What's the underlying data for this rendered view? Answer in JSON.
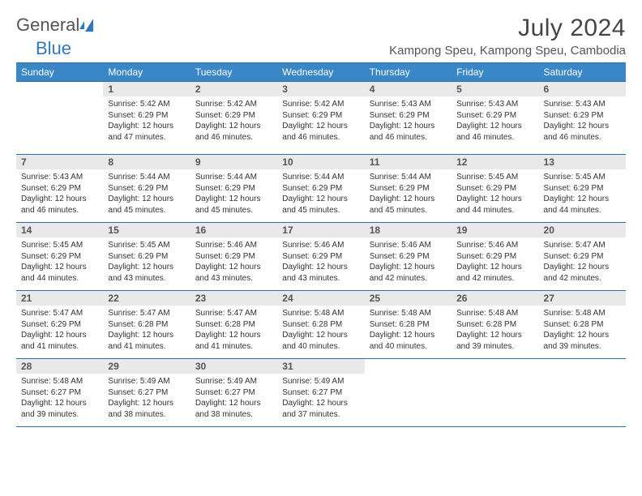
{
  "logo": {
    "text1": "General",
    "text2": "Blue"
  },
  "title": "July 2024",
  "location": "Kampong Speu, Kampong Speu, Cambodia",
  "colors": {
    "header_bg": "#3a87c8",
    "header_border": "#2d6ea6",
    "daynum_bg": "#e9e9e9",
    "text": "#333333",
    "logo_accent": "#2f79bd"
  },
  "weekday_labels": [
    "Sunday",
    "Monday",
    "Tuesday",
    "Wednesday",
    "Thursday",
    "Friday",
    "Saturday"
  ],
  "weeks": [
    [
      null,
      {
        "n": "1",
        "sr": "5:42 AM",
        "ss": "6:29 PM",
        "dl": "12 hours and 47 minutes."
      },
      {
        "n": "2",
        "sr": "5:42 AM",
        "ss": "6:29 PM",
        "dl": "12 hours and 46 minutes."
      },
      {
        "n": "3",
        "sr": "5:42 AM",
        "ss": "6:29 PM",
        "dl": "12 hours and 46 minutes."
      },
      {
        "n": "4",
        "sr": "5:43 AM",
        "ss": "6:29 PM",
        "dl": "12 hours and 46 minutes."
      },
      {
        "n": "5",
        "sr": "5:43 AM",
        "ss": "6:29 PM",
        "dl": "12 hours and 46 minutes."
      },
      {
        "n": "6",
        "sr": "5:43 AM",
        "ss": "6:29 PM",
        "dl": "12 hours and 46 minutes."
      }
    ],
    [
      {
        "n": "7",
        "sr": "5:43 AM",
        "ss": "6:29 PM",
        "dl": "12 hours and 46 minutes."
      },
      {
        "n": "8",
        "sr": "5:44 AM",
        "ss": "6:29 PM",
        "dl": "12 hours and 45 minutes."
      },
      {
        "n": "9",
        "sr": "5:44 AM",
        "ss": "6:29 PM",
        "dl": "12 hours and 45 minutes."
      },
      {
        "n": "10",
        "sr": "5:44 AM",
        "ss": "6:29 PM",
        "dl": "12 hours and 45 minutes."
      },
      {
        "n": "11",
        "sr": "5:44 AM",
        "ss": "6:29 PM",
        "dl": "12 hours and 45 minutes."
      },
      {
        "n": "12",
        "sr": "5:45 AM",
        "ss": "6:29 PM",
        "dl": "12 hours and 44 minutes."
      },
      {
        "n": "13",
        "sr": "5:45 AM",
        "ss": "6:29 PM",
        "dl": "12 hours and 44 minutes."
      }
    ],
    [
      {
        "n": "14",
        "sr": "5:45 AM",
        "ss": "6:29 PM",
        "dl": "12 hours and 44 minutes."
      },
      {
        "n": "15",
        "sr": "5:45 AM",
        "ss": "6:29 PM",
        "dl": "12 hours and 43 minutes."
      },
      {
        "n": "16",
        "sr": "5:46 AM",
        "ss": "6:29 PM",
        "dl": "12 hours and 43 minutes."
      },
      {
        "n": "17",
        "sr": "5:46 AM",
        "ss": "6:29 PM",
        "dl": "12 hours and 43 minutes."
      },
      {
        "n": "18",
        "sr": "5:46 AM",
        "ss": "6:29 PM",
        "dl": "12 hours and 42 minutes."
      },
      {
        "n": "19",
        "sr": "5:46 AM",
        "ss": "6:29 PM",
        "dl": "12 hours and 42 minutes."
      },
      {
        "n": "20",
        "sr": "5:47 AM",
        "ss": "6:29 PM",
        "dl": "12 hours and 42 minutes."
      }
    ],
    [
      {
        "n": "21",
        "sr": "5:47 AM",
        "ss": "6:29 PM",
        "dl": "12 hours and 41 minutes."
      },
      {
        "n": "22",
        "sr": "5:47 AM",
        "ss": "6:28 PM",
        "dl": "12 hours and 41 minutes."
      },
      {
        "n": "23",
        "sr": "5:47 AM",
        "ss": "6:28 PM",
        "dl": "12 hours and 41 minutes."
      },
      {
        "n": "24",
        "sr": "5:48 AM",
        "ss": "6:28 PM",
        "dl": "12 hours and 40 minutes."
      },
      {
        "n": "25",
        "sr": "5:48 AM",
        "ss": "6:28 PM",
        "dl": "12 hours and 40 minutes."
      },
      {
        "n": "26",
        "sr": "5:48 AM",
        "ss": "6:28 PM",
        "dl": "12 hours and 39 minutes."
      },
      {
        "n": "27",
        "sr": "5:48 AM",
        "ss": "6:28 PM",
        "dl": "12 hours and 39 minutes."
      }
    ],
    [
      {
        "n": "28",
        "sr": "5:48 AM",
        "ss": "6:27 PM",
        "dl": "12 hours and 39 minutes."
      },
      {
        "n": "29",
        "sr": "5:49 AM",
        "ss": "6:27 PM",
        "dl": "12 hours and 38 minutes."
      },
      {
        "n": "30",
        "sr": "5:49 AM",
        "ss": "6:27 PM",
        "dl": "12 hours and 38 minutes."
      },
      {
        "n": "31",
        "sr": "5:49 AM",
        "ss": "6:27 PM",
        "dl": "12 hours and 37 minutes."
      },
      null,
      null,
      null
    ]
  ],
  "labels": {
    "sunrise": "Sunrise: ",
    "sunset": "Sunset: ",
    "daylight": "Daylight: "
  }
}
